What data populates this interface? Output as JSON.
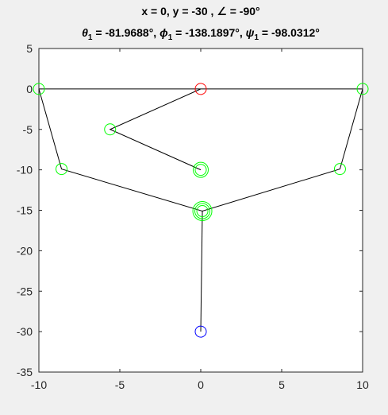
{
  "title": {
    "line1": "x = 0, y = -30 , ∠ = -90°",
    "line2": {
      "theta_sym": "θ",
      "theta_sub": "1",
      "theta_val": " = -81.9688°, ",
      "phi_sym": "ϕ",
      "phi_sub": "1",
      "phi_val": " = -138.1897°, ",
      "psi_sym": "ψ",
      "psi_sub": "1",
      "psi_val": " = -98.0312°"
    }
  },
  "chart_data": {
    "type": "scatter",
    "xlim": [
      -10,
      10
    ],
    "ylim": [
      -35,
      5
    ],
    "x_ticks": [
      -10,
      -5,
      0,
      5,
      10
    ],
    "y_ticks": [
      5,
      0,
      -5,
      -10,
      -15,
      -20,
      -25,
      -30,
      -35
    ],
    "x_tick_labels": [
      "-10",
      "-5",
      "0",
      "5",
      "10"
    ],
    "y_tick_labels": [
      "5",
      "0",
      "-5",
      "-10",
      "-15",
      "-20",
      "-25",
      "-30",
      "-35"
    ],
    "grid": false,
    "colors": {
      "background": "#f0f0f0",
      "axes_background": "#ffffff",
      "axis": "#262626",
      "link": "#000000",
      "joint": "#00ff00",
      "origin": "#ff0000",
      "end_effector": "#0000ff"
    },
    "links": [
      [
        [
          -10,
          0
        ],
        [
          10,
          0
        ]
      ],
      [
        [
          -10,
          0
        ],
        [
          -8.6,
          -9.9
        ],
        [
          0.1,
          -15.1
        ],
        [
          8.6,
          -9.9
        ],
        [
          10,
          0
        ]
      ],
      [
        [
          0,
          0
        ],
        [
          -5.6,
          -5
        ],
        [
          0,
          -10
        ]
      ],
      [
        [
          0.1,
          -15.1
        ],
        [
          0,
          -30
        ]
      ]
    ],
    "markers": [
      {
        "name": "origin",
        "color": "#ff0000",
        "points": [
          [
            0,
            0
          ]
        ],
        "rings": 1
      },
      {
        "name": "joint",
        "color": "#00ff00",
        "points": [
          [
            -10,
            0
          ],
          [
            10,
            0
          ],
          [
            -5.6,
            -5
          ],
          [
            -8.6,
            -9.9
          ],
          [
            8.6,
            -9.9
          ]
        ],
        "rings": 1
      },
      {
        "name": "joint-double",
        "color": "#00ff00",
        "points": [
          [
            0,
            -10
          ]
        ],
        "rings": 2
      },
      {
        "name": "joint-triple",
        "color": "#00ff00",
        "points": [
          [
            0.1,
            -15.1
          ]
        ],
        "rings": 3
      },
      {
        "name": "end-effector",
        "color": "#0000ff",
        "points": [
          [
            0,
            -30
          ]
        ],
        "rings": 1
      }
    ]
  }
}
